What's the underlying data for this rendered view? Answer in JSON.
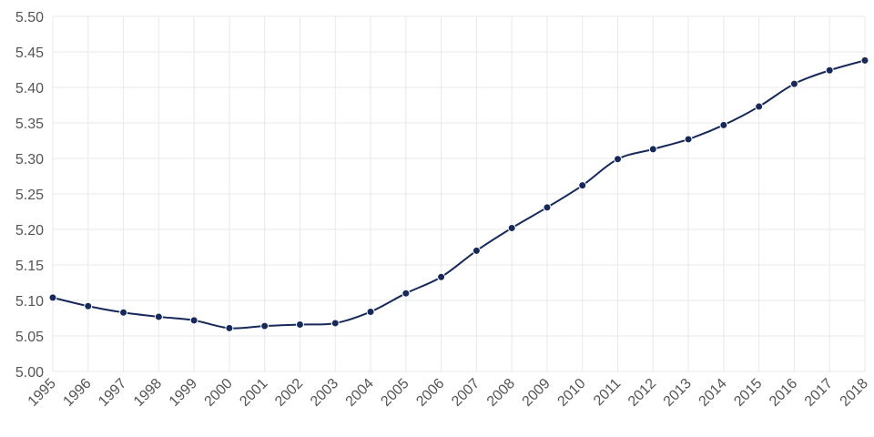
{
  "chart_data": {
    "type": "line",
    "x": [
      "1995",
      "1996",
      "1997",
      "1998",
      "1999",
      "2000",
      "2001",
      "2002",
      "2003",
      "2004",
      "2005",
      "2006",
      "2007",
      "2008",
      "2009",
      "2010",
      "2011",
      "2012",
      "2013",
      "2014",
      "2015",
      "2016",
      "2017",
      "2018"
    ],
    "series": [
      {
        "values": [
          5.104,
          5.092,
          5.083,
          5.077,
          5.072,
          5.061,
          5.064,
          5.066,
          5.068,
          5.084,
          5.11,
          5.133,
          5.17,
          5.202,
          5.231,
          5.262,
          5.299,
          5.313,
          5.327,
          5.347,
          5.373,
          5.405,
          5.424,
          5.438
        ],
        "color": "#16295a"
      }
    ],
    "yticks": [
      "5.00",
      "5.05",
      "5.10",
      "5.15",
      "5.20",
      "5.25",
      "5.30",
      "5.35",
      "5.40",
      "5.45",
      "5.50"
    ],
    "ylim": [
      5.0,
      5.5
    ],
    "grid": true,
    "legend": "none",
    "title": "",
    "xlabel": "",
    "ylabel": ""
  }
}
